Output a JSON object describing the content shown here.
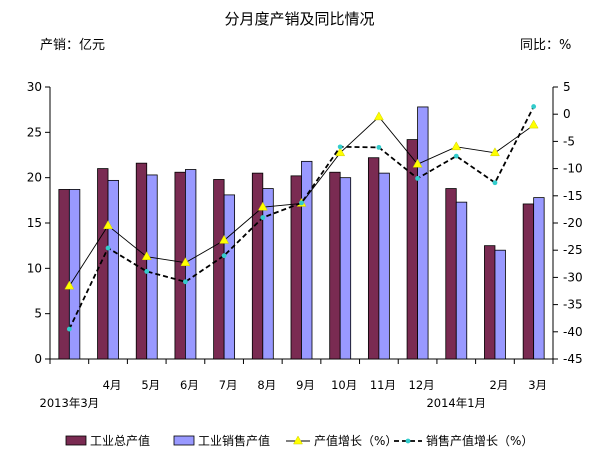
{
  "title": "分月度产销及同比情况",
  "left_unit": "产销：亿元",
  "right_unit": "同比：%",
  "chart_data": {
    "type": "bar",
    "categories": [
      "2013年3月",
      "4月",
      "5月",
      "6月",
      "7月",
      "8月",
      "9月",
      "10月",
      "11月",
      "12月",
      "2014年1月",
      "2月",
      "3月"
    ],
    "category_labels": [
      "",
      "4月",
      "5月",
      "6月",
      "7月",
      "8月",
      "9月",
      "10月",
      "11月",
      "12月",
      "",
      "2月",
      "3月"
    ],
    "category_labels_low": [
      "2013年3月",
      "",
      "",
      "",
      "",
      "",
      "",
      "",
      "",
      "",
      "2014年1月",
      "",
      ""
    ],
    "y_left": {
      "ticks": [
        "0",
        "5",
        "10",
        "15",
        "20",
        "25",
        "30"
      ],
      "lim": [
        0,
        30
      ]
    },
    "y_right": {
      "ticks": [
        "5",
        "0",
        "-5",
        "-10",
        "-15",
        "-20",
        "-25",
        "-30",
        "-35",
        "-40",
        "-45"
      ],
      "lim": [
        -45,
        5
      ]
    },
    "series": [
      {
        "name": "工业总产值",
        "kind": "bar",
        "axis": "left",
        "color": "#7a2b52",
        "values": [
          18.7,
          21.0,
          21.6,
          20.6,
          19.8,
          20.5,
          20.2,
          20.6,
          22.2,
          24.2,
          18.8,
          12.5,
          17.1
        ]
      },
      {
        "name": "工业销售产值",
        "kind": "bar",
        "axis": "left",
        "color": "#9999ff",
        "values": [
          18.7,
          19.7,
          20.3,
          20.9,
          18.1,
          18.8,
          21.8,
          20.0,
          20.5,
          27.8,
          17.3,
          12.0,
          17.8
        ]
      },
      {
        "name": "产值增长（%）",
        "kind": "line",
        "axis": "right",
        "color": "#ffff00",
        "values": [
          -31.6,
          -20.5,
          -26.2,
          -27.3,
          -23.2,
          -17.1,
          -16.4,
          -7.1,
          -0.5,
          -9.2,
          -6.0,
          -7.1,
          -2.0
        ]
      },
      {
        "name": "销售产值增长（%）",
        "kind": "line",
        "axis": "right",
        "color": "#33cccc",
        "values": [
          -39.5,
          -24.6,
          -28.9,
          -30.8,
          -26.0,
          -19.0,
          -16.3,
          -6.0,
          -6.1,
          -11.8,
          -7.7,
          -12.6,
          1.4
        ]
      }
    ],
    "grid": false,
    "legend": "bottom"
  }
}
